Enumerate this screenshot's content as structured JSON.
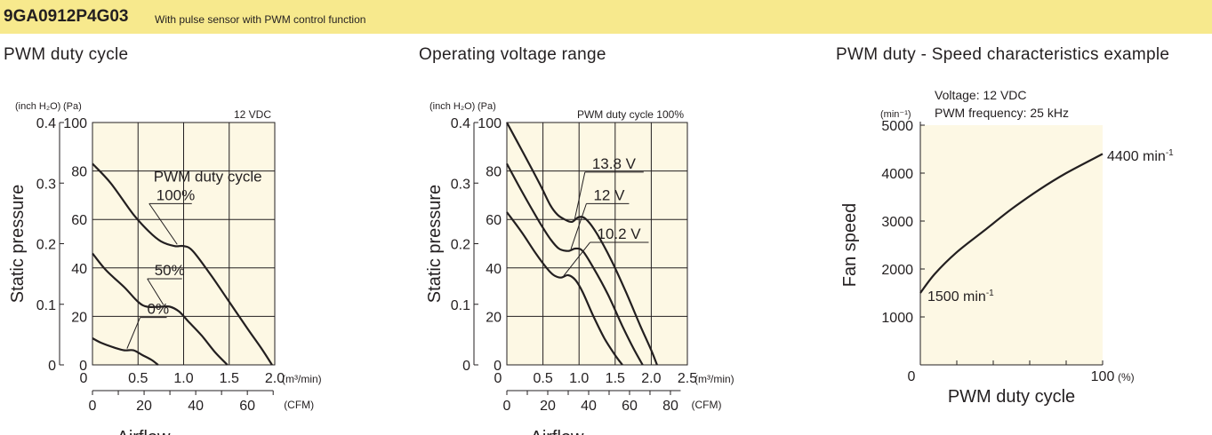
{
  "header": {
    "model": "9GA0912P4G03",
    "description": "With pulse sensor with PWM control function",
    "background_color": "#f7e98d"
  },
  "colors": {
    "plot_bg": "#fdf8e4",
    "line": "#231f20"
  },
  "chart_data": [
    {
      "type": "line",
      "title": "PWM duty cycle",
      "note": "12 VDC",
      "ylabel": "Static pressure",
      "y_unit_left": "(inch H₂O)",
      "y_unit_right": "(Pa)",
      "xlabel": "Airflow",
      "x_unit_top": "(m³/min)",
      "x_unit_bottom": "(CFM)",
      "xlim": [
        0,
        2.0
      ],
      "ylim": [
        0,
        100
      ],
      "x_ticks": [
        "0",
        "0.5",
        "1.0",
        "1.5",
        "2.0"
      ],
      "y_ticks": [
        "0",
        "20",
        "40",
        "60",
        "80",
        "100"
      ],
      "y2_ticks": [
        "0",
        "0.1",
        "0.2",
        "0.3",
        "0.4"
      ],
      "cfm_ticks": [
        "0",
        "20",
        "40",
        "60"
      ],
      "cfm_values": [
        0,
        20,
        40,
        60
      ],
      "cfm_per_m3min": 35.31,
      "grid": true,
      "series_label_title": "PWM duty cycle",
      "series": [
        {
          "name": "100%",
          "label_x": 0.7,
          "label_y": 68,
          "x": [
            0,
            0.2,
            0.45,
            0.62,
            0.75,
            0.9,
            1.0,
            1.1,
            1.3,
            1.5,
            1.7,
            1.85,
            1.97
          ],
          "y": [
            83,
            75,
            62,
            55,
            51,
            49,
            49,
            47,
            37,
            26,
            15,
            7,
            0
          ]
        },
        {
          "name": "50%",
          "label_x": 0.68,
          "label_y": 37,
          "x": [
            0,
            0.15,
            0.35,
            0.5,
            0.6,
            0.75,
            0.85,
            0.95,
            1.05,
            1.2,
            1.35,
            1.48
          ],
          "y": [
            46,
            39,
            32,
            26,
            24,
            24,
            24,
            22,
            18,
            12,
            5,
            0
          ]
        },
        {
          "name": "0%",
          "label_x": 0.6,
          "label_y": 21,
          "x": [
            0,
            0.1,
            0.25,
            0.35,
            0.45,
            0.55,
            0.65,
            0.72
          ],
          "y": [
            11,
            9,
            7,
            6,
            6,
            4,
            2,
            0
          ]
        }
      ]
    },
    {
      "type": "line",
      "title": "Operating voltage range",
      "note": "PWM duty cycle 100%",
      "ylabel": "Static pressure",
      "y_unit_left": "(inch H₂O)",
      "y_unit_right": "(Pa)",
      "xlabel": "Airflow",
      "x_unit_top": "(m³/min)",
      "x_unit_bottom": "(CFM)",
      "xlim": [
        0,
        2.5
      ],
      "ylim": [
        0,
        100
      ],
      "x_ticks": [
        "0",
        "0.5",
        "1.0",
        "1.5",
        "2.0",
        "2.5"
      ],
      "y_ticks": [
        "0",
        "20",
        "40",
        "60",
        "80",
        "100"
      ],
      "y2_ticks": [
        "0",
        "0.1",
        "0.2",
        "0.3",
        "0.4"
      ],
      "cfm_ticks": [
        "0",
        "20",
        "40",
        "60",
        "80"
      ],
      "cfm_values": [
        0,
        20,
        40,
        60,
        80
      ],
      "cfm_per_m3min": 35.31,
      "grid": true,
      "series": [
        {
          "name": "13.8 V",
          "label_x": 1.18,
          "label_y": 81,
          "x": [
            0,
            0.2,
            0.45,
            0.6,
            0.7,
            0.8,
            0.9,
            1.0,
            1.1,
            1.25,
            1.45,
            1.65,
            1.85,
            2.0,
            2.08
          ],
          "y": [
            100,
            89,
            75,
            66,
            62,
            60,
            59,
            61,
            60,
            54,
            43,
            30,
            16,
            6,
            0
          ]
        },
        {
          "name": "12 V",
          "label_x": 1.2,
          "label_y": 68,
          "x": [
            0,
            0.2,
            0.45,
            0.6,
            0.72,
            0.85,
            0.95,
            1.05,
            1.2,
            1.4,
            1.6,
            1.75,
            1.88
          ],
          "y": [
            83,
            72,
            59,
            52,
            48,
            47,
            48,
            47,
            40,
            29,
            16,
            7,
            0
          ]
        },
        {
          "name": "10.2 V",
          "label_x": 1.25,
          "label_y": 52,
          "x": [
            0,
            0.2,
            0.4,
            0.55,
            0.65,
            0.75,
            0.85,
            0.95,
            1.05,
            1.2,
            1.35,
            1.5,
            1.6
          ],
          "y": [
            63,
            55,
            46,
            40,
            37,
            36,
            37,
            35,
            30,
            20,
            11,
            4,
            0
          ]
        }
      ]
    },
    {
      "type": "line",
      "title": "PWM duty - Speed characteristics example",
      "note_lines": [
        "Voltage: 12 VDC",
        "PWM frequency: 25 kHz"
      ],
      "ylabel": "Fan speed",
      "y_unit": "(min⁻¹)",
      "xlabel": "PWM duty cycle",
      "x_unit": "(%)",
      "xlim": [
        0,
        100
      ],
      "ylim": [
        0,
        5000
      ],
      "x_ticks": [
        "0",
        "100"
      ],
      "x_minor_ticks": [
        20,
        40,
        60,
        80
      ],
      "y_ticks": [
        "1000",
        "2000",
        "3000",
        "4000",
        "5000"
      ],
      "y_tick_values": [
        1000,
        2000,
        3000,
        4000,
        5000
      ],
      "grid": false,
      "series": [
        {
          "name": "Fan speed",
          "x": [
            0,
            8,
            20,
            35,
            50,
            65,
            80,
            100
          ],
          "y": [
            1500,
            1900,
            2350,
            2800,
            3250,
            3650,
            4000,
            4400
          ]
        }
      ],
      "annotations": [
        {
          "base": "1500 min",
          "sup": "-1"
        },
        {
          "base": "4400 min",
          "sup": "-1"
        }
      ]
    }
  ]
}
